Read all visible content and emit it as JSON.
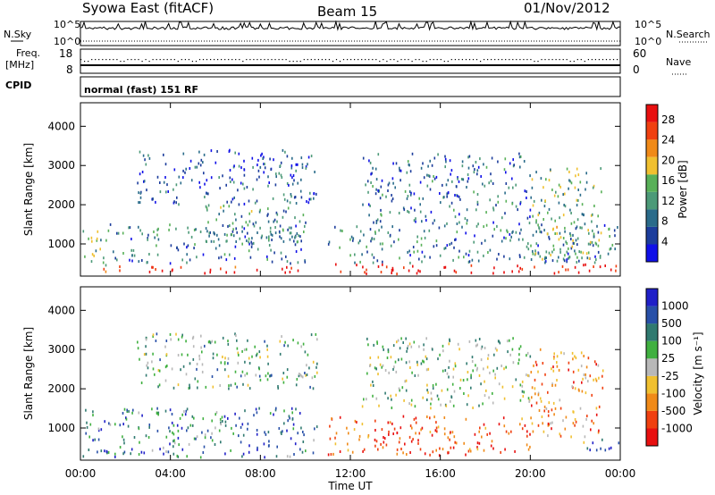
{
  "header": {
    "station": "Syowa East (fitACF)",
    "beam": "Beam 15",
    "date": "01/Nov/2012"
  },
  "strip_labels": {
    "nsky": "N.Sky",
    "nsearch": "N.Search",
    "freq": "Freq.",
    "mhz": "[MHz]",
    "nave": "Nave",
    "cpid": "CPID",
    "program": "normal (fast) 151 RF"
  },
  "strip_ticks": {
    "noise_left": [
      "10^5",
      "10^0"
    ],
    "noise_right": [
      "10^5",
      "10^0"
    ],
    "freq_left": [
      "18",
      "8"
    ],
    "nave_right": [
      "60",
      "0"
    ]
  },
  "chart_data": [
    {
      "type": "heatmap",
      "panel": "power",
      "ylabel": "Slant Range [km]",
      "ylim": [
        180,
        4600
      ],
      "yticks": [
        1000,
        2000,
        3000,
        4000
      ],
      "xlim_hours": [
        0,
        24
      ],
      "colorbar": {
        "label": "Power [dB]",
        "ticks": [
          4,
          8,
          12,
          16,
          20,
          24,
          28
        ],
        "range": [
          0,
          31
        ],
        "colors": [
          "#1010e8",
          "#1c3d9c",
          "#2a6b8a",
          "#4c9a78",
          "#58b058",
          "#f0c030",
          "#f08a18",
          "#f04010",
          "#e81010"
        ]
      },
      "echo_regions": [
        {
          "t0": 0.1,
          "t1": 1.2,
          "r0": 400,
          "r1": 1400,
          "level": 0.45
        },
        {
          "t0": 1.0,
          "t1": 10.2,
          "r0": 250,
          "r1": 420,
          "level": 0.95
        },
        {
          "t0": 1.2,
          "t1": 10.0,
          "r0": 500,
          "r1": 1500,
          "level": 0.3
        },
        {
          "t0": 5.5,
          "t1": 10.0,
          "r0": 1000,
          "r1": 2000,
          "level": 0.35
        },
        {
          "t0": 2.5,
          "t1": 10.5,
          "r0": 2000,
          "r1": 3400,
          "level": 0.2
        },
        {
          "t0": 11.2,
          "t1": 24.0,
          "r0": 230,
          "r1": 480,
          "level": 1.0
        },
        {
          "t0": 11.0,
          "t1": 24.0,
          "r0": 500,
          "r1": 1500,
          "level": 0.3
        },
        {
          "t0": 12.5,
          "t1": 20.0,
          "r0": 1500,
          "r1": 3300,
          "level": 0.25
        },
        {
          "t0": 20.0,
          "t1": 23.2,
          "r0": 600,
          "r1": 3000,
          "level": 0.45
        }
      ]
    },
    {
      "type": "heatmap",
      "panel": "velocity",
      "ylabel": "Slant Range [km]",
      "xlabel": "Time UT",
      "ylim": [
        180,
        4600
      ],
      "yticks": [
        1000,
        2000,
        3000,
        4000
      ],
      "xlim_hours": [
        0,
        24
      ],
      "xticks": [
        "00:00",
        "04:00",
        "08:00",
        "12:00",
        "16:00",
        "20:00",
        "00:00"
      ],
      "colorbar": {
        "label": "Velocity [m s⁻¹]",
        "ticks": [
          1000,
          500,
          100,
          25,
          -25,
          -100,
          -500,
          -1000
        ],
        "colors": [
          "#2020c8",
          "#2850a8",
          "#307a70",
          "#40b040",
          "#b8b8b8",
          "#f0c030",
          "#f08a18",
          "#f04010",
          "#e81010"
        ]
      },
      "echo_regions": [
        {
          "t0": 0.0,
          "t1": 10.5,
          "r0": 250,
          "r1": 1500,
          "level": 0.75
        },
        {
          "t0": 2.5,
          "t1": 10.5,
          "r0": 2000,
          "r1": 3400,
          "level": 0.6
        },
        {
          "t0": 11.0,
          "t1": 20.0,
          "r0": 300,
          "r1": 1300,
          "level": 0.15
        },
        {
          "t0": 12.5,
          "t1": 20.0,
          "r0": 1500,
          "r1": 3300,
          "level": 0.55
        },
        {
          "t0": 20.0,
          "t1": 23.2,
          "r0": 600,
          "r1": 3000,
          "level": 0.3
        },
        {
          "t0": 22.5,
          "t1": 24.0,
          "r0": 300,
          "r1": 700,
          "level": 0.85
        }
      ]
    }
  ]
}
